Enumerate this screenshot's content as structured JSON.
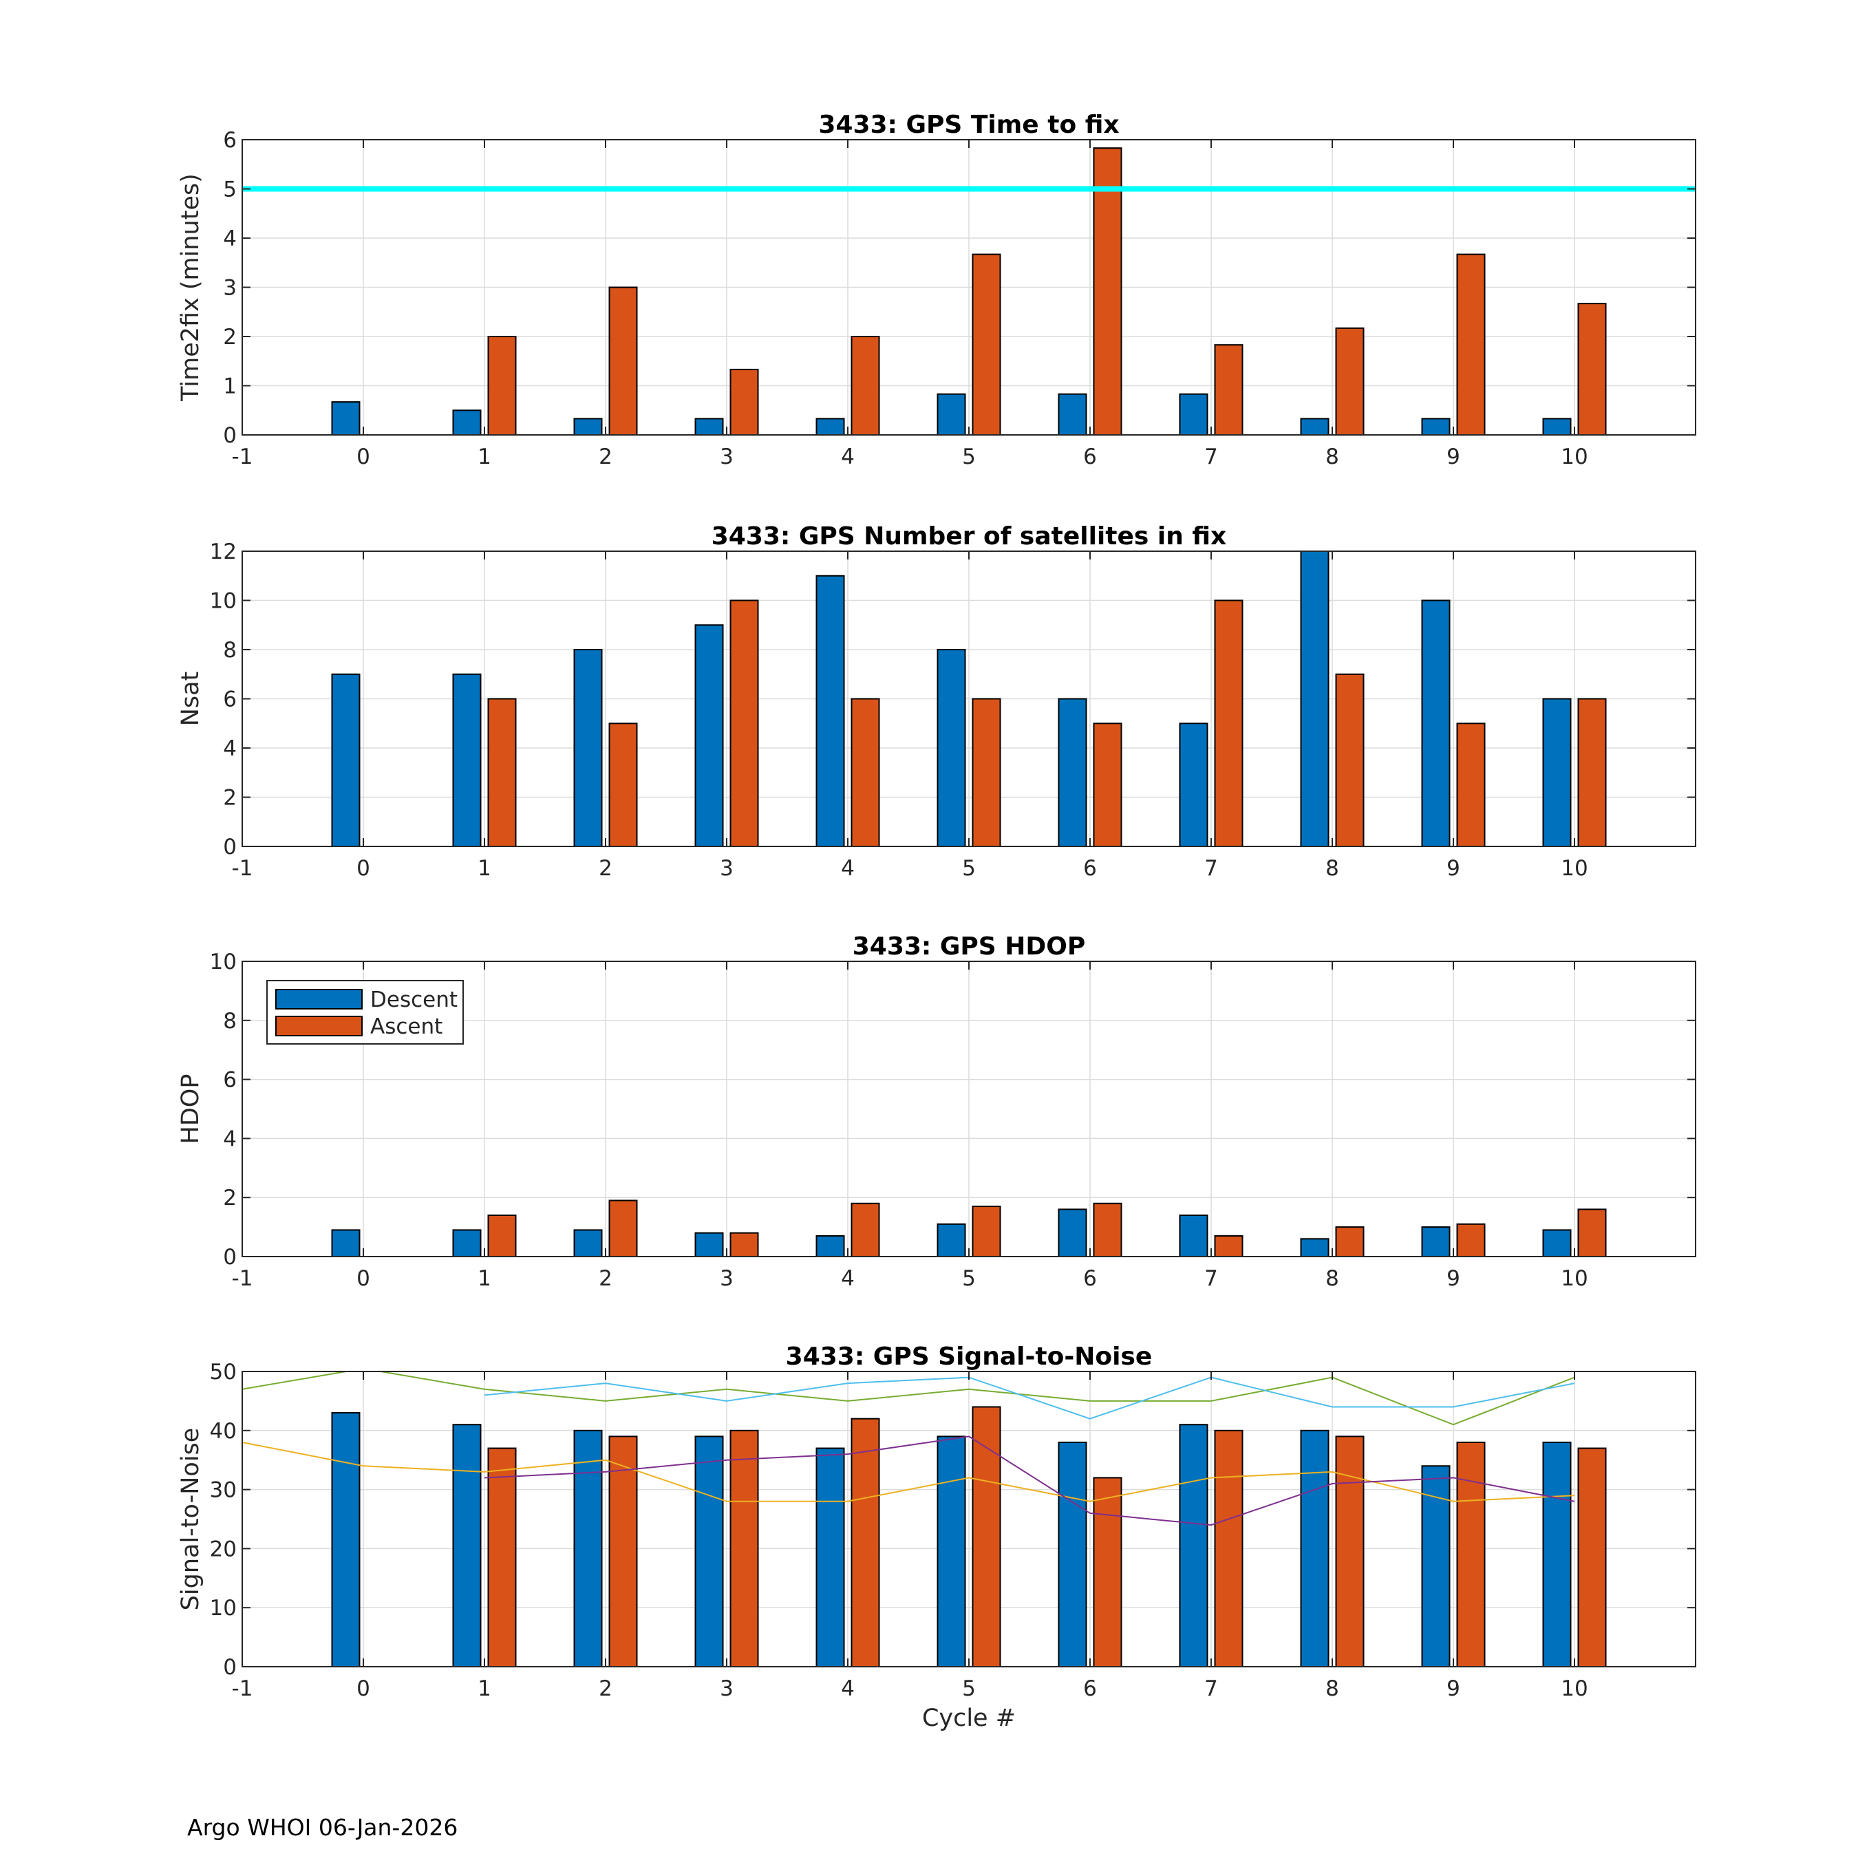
{
  "footer": "Argo WHOI 06-Jan-2026",
  "colors": {
    "descent": "#0072BD",
    "ascent": "#D95319",
    "threshold": "#00FFFF",
    "snr_blue": "#4DBEEE",
    "snr_green": "#77AC30",
    "snr_orange": "#EDB120",
    "snr_purple": "#7E2F8E"
  },
  "legend": {
    "descent": "Descent",
    "ascent": "Ascent"
  },
  "chart_data": [
    {
      "type": "bar",
      "title": "3433: GPS Time to fix",
      "ylabel": "Time2fix (minutes)",
      "xlabel": "",
      "xlim": [
        -1,
        11
      ],
      "ylim": [
        0,
        6
      ],
      "xticks": [
        "-1",
        "0",
        "1",
        "2",
        "3",
        "4",
        "5",
        "6",
        "7",
        "8",
        "9",
        "10"
      ],
      "yticks": [
        "0",
        "1",
        "2",
        "3",
        "4",
        "5",
        "6"
      ],
      "categories": [
        0,
        1,
        2,
        3,
        4,
        5,
        6,
        7,
        8,
        9,
        10
      ],
      "series": [
        {
          "name": "Descent",
          "values": [
            0.67,
            0.5,
            0.33,
            0.33,
            0.33,
            0.83,
            0.83,
            0.83,
            0.33,
            0.33,
            0.33
          ]
        },
        {
          "name": "Ascent",
          "values": [
            null,
            2.0,
            3.0,
            1.33,
            2.0,
            3.67,
            5.83,
            1.83,
            2.17,
            3.67,
            2.67
          ]
        }
      ],
      "hline": 5
    },
    {
      "type": "bar",
      "title": "3433: GPS Number of satellites in fix",
      "ylabel": "Nsat",
      "xlabel": "",
      "xlim": [
        -1,
        11
      ],
      "ylim": [
        0,
        12
      ],
      "xticks": [
        "-1",
        "0",
        "1",
        "2",
        "3",
        "4",
        "5",
        "6",
        "7",
        "8",
        "9",
        "10"
      ],
      "yticks": [
        "0",
        "2",
        "4",
        "6",
        "8",
        "10",
        "12"
      ],
      "categories": [
        0,
        1,
        2,
        3,
        4,
        5,
        6,
        7,
        8,
        9,
        10
      ],
      "series": [
        {
          "name": "Descent",
          "values": [
            7,
            7,
            8,
            9,
            11,
            8,
            6,
            5,
            12,
            10,
            6
          ]
        },
        {
          "name": "Ascent",
          "values": [
            null,
            6,
            5,
            10,
            6,
            6,
            5,
            10,
            7,
            5,
            6
          ]
        }
      ]
    },
    {
      "type": "bar",
      "title": "3433: GPS HDOP",
      "ylabel": "HDOP",
      "xlabel": "",
      "xlim": [
        -1,
        11
      ],
      "ylim": [
        0,
        10
      ],
      "xticks": [
        "-1",
        "0",
        "1",
        "2",
        "3",
        "4",
        "5",
        "6",
        "7",
        "8",
        "9",
        "10"
      ],
      "yticks": [
        "0",
        "2",
        "4",
        "6",
        "8",
        "10"
      ],
      "categories": [
        0,
        1,
        2,
        3,
        4,
        5,
        6,
        7,
        8,
        9,
        10
      ],
      "series": [
        {
          "name": "Descent",
          "values": [
            0.9,
            0.9,
            0.9,
            0.8,
            0.7,
            1.1,
            1.6,
            1.4,
            0.6,
            1.0,
            0.9
          ]
        },
        {
          "name": "Ascent",
          "values": [
            null,
            1.4,
            1.9,
            0.8,
            1.8,
            1.7,
            1.8,
            0.7,
            1.0,
            1.1,
            1.6
          ]
        }
      ],
      "legend": "top-left"
    },
    {
      "type": "bar",
      "title": "3433: GPS Signal-to-Noise",
      "ylabel": "Signal-to-Noise",
      "xlabel": "Cycle #",
      "xlim": [
        -1,
        11
      ],
      "ylim": [
        0,
        50
      ],
      "xticks": [
        "-1",
        "0",
        "1",
        "2",
        "3",
        "4",
        "5",
        "6",
        "7",
        "8",
        "9",
        "10"
      ],
      "yticks": [
        "0",
        "10",
        "20",
        "30",
        "40",
        "50"
      ],
      "categories": [
        0,
        1,
        2,
        3,
        4,
        5,
        6,
        7,
        8,
        9,
        10
      ],
      "series": [
        {
          "name": "Descent",
          "values": [
            43,
            41,
            40,
            39,
            37,
            39,
            38,
            41,
            40,
            34,
            38
          ]
        },
        {
          "name": "Ascent",
          "values": [
            null,
            37,
            39,
            40,
            42,
            44,
            32,
            40,
            39,
            38,
            37
          ]
        }
      ],
      "lines": [
        {
          "name": "snr_green",
          "x": [
            -1,
            0,
            1,
            2,
            3,
            4,
            5,
            6,
            7,
            8,
            9,
            10
          ],
          "y": [
            47,
            50.5,
            47,
            45,
            47,
            45,
            47,
            45,
            45,
            49,
            41,
            49
          ]
        },
        {
          "name": "snr_blue",
          "x": [
            1,
            2,
            3,
            4,
            5,
            6,
            7,
            8,
            9,
            10
          ],
          "y": [
            46,
            48,
            45,
            48,
            49,
            42,
            49,
            44,
            44,
            48
          ]
        },
        {
          "name": "snr_orange",
          "x": [
            -1,
            0,
            1,
            2,
            3,
            4,
            5,
            6,
            7,
            8,
            9,
            10
          ],
          "y": [
            38,
            34,
            33,
            35,
            28,
            28,
            32,
            28,
            32,
            33,
            28,
            29
          ]
        },
        {
          "name": "snr_purple",
          "x": [
            1,
            2,
            3,
            4,
            5,
            6,
            7,
            8,
            9,
            10
          ],
          "y": [
            32,
            33,
            35,
            36,
            39,
            26,
            24,
            31,
            32,
            28
          ]
        }
      ]
    }
  ]
}
